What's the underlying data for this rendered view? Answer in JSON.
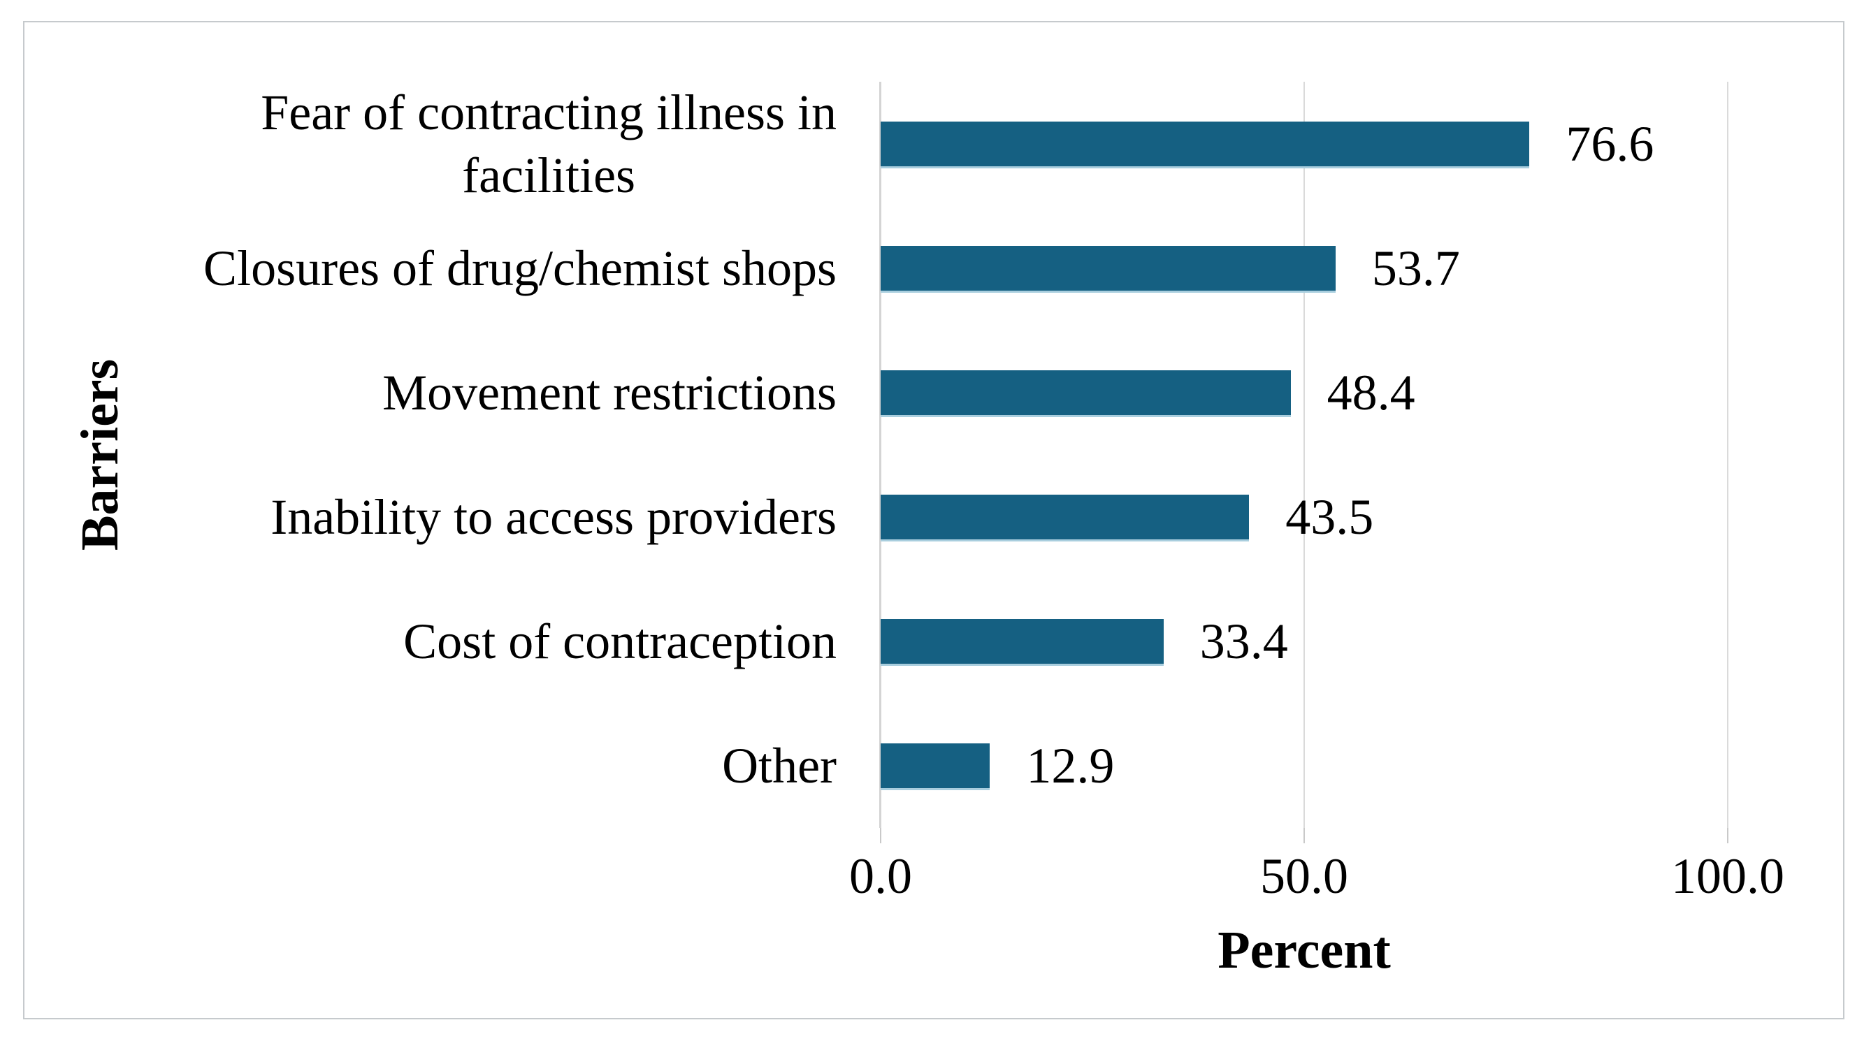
{
  "figure": {
    "background_color": "#ffffff",
    "frame_border_color": "#c6cacd"
  },
  "chart_data": {
    "type": "bar",
    "orientation": "horizontal",
    "title": "",
    "categories": [
      "Fear of contracting illness in\nfacilities",
      "Closures of drug/chemist shops",
      "Movement restrictions",
      "Inability to access providers",
      "Cost of contraception",
      "Other"
    ],
    "values": [
      76.6,
      53.7,
      48.4,
      43.5,
      33.4,
      12.9
    ],
    "value_labels": [
      "76.6",
      "53.7",
      "48.4",
      "43.5",
      "33.4",
      "12.9"
    ],
    "xlabel": "Percent",
    "ylabel": "Barriers",
    "xlim": [
      0,
      100
    ],
    "x_tick_values": [
      0,
      50,
      100
    ],
    "x_tick_labels": [
      "0.0",
      "50.0",
      "100.0"
    ],
    "bar_color": "#156082",
    "gridline_color": "#dadada",
    "grid": "vertical-at-ticks",
    "legend_position": "none"
  }
}
